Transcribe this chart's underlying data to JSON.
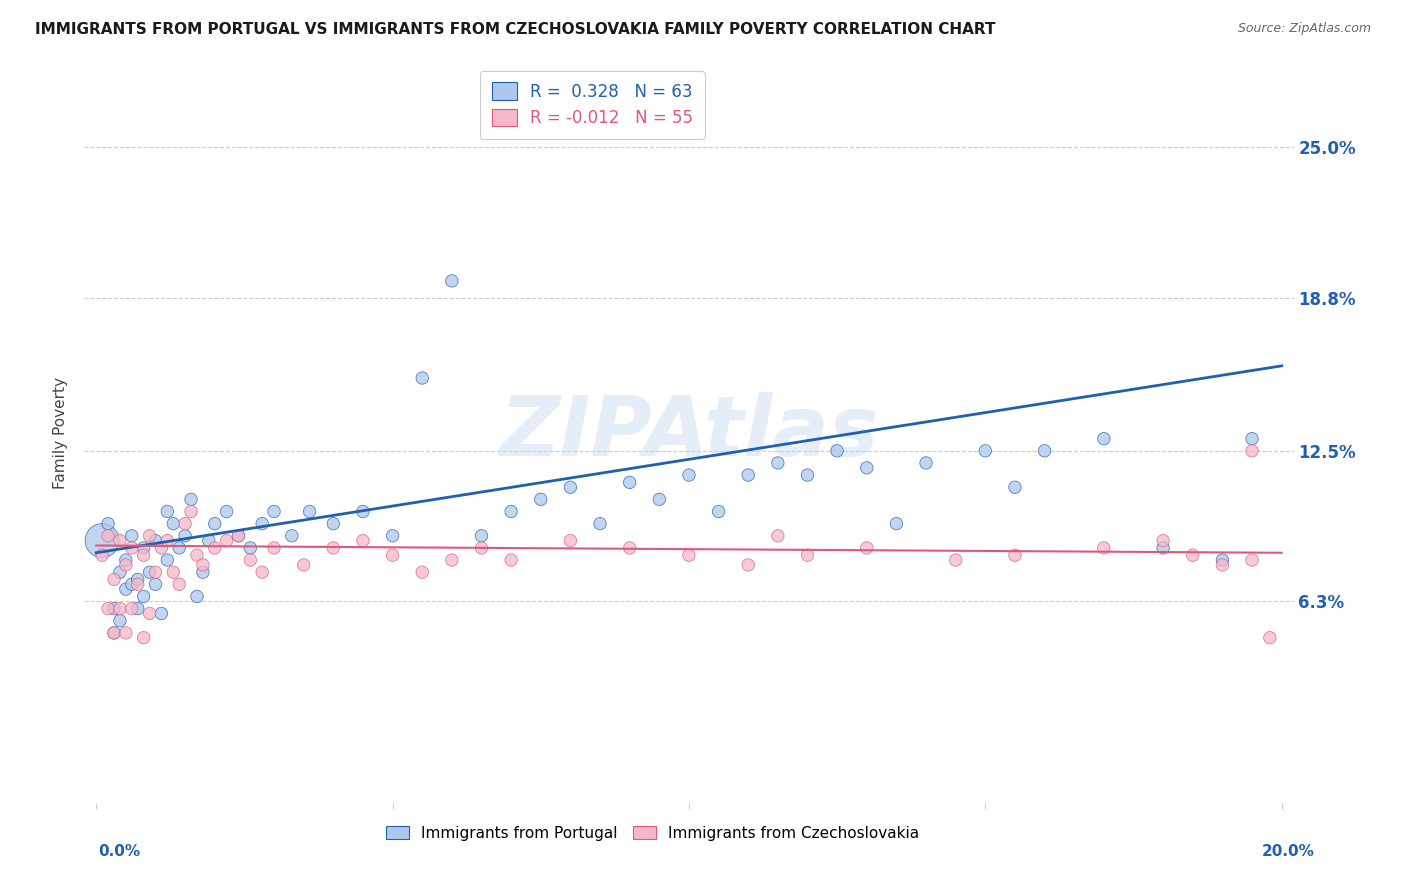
{
  "title": "IMMIGRANTS FROM PORTUGAL VS IMMIGRANTS FROM CZECHOSLOVAKIA FAMILY POVERTY CORRELATION CHART",
  "source": "Source: ZipAtlas.com",
  "ylabel": "Family Poverty",
  "legend_R1": "0.328",
  "legend_N1": "63",
  "legend_R2": "-0.012",
  "legend_N2": "55",
  "color_portugal": "#adc8ed",
  "color_czech": "#f5b8ca",
  "line_color_portugal": "#2060b0",
  "line_color_czech": "#e05878",
  "background_color": "#ffffff",
  "xlim": [
    -0.002,
    0.202
  ],
  "ylim": [
    -0.02,
    0.285
  ],
  "ytick_vals": [
    0.063,
    0.125,
    0.188,
    0.25
  ],
  "ytick_labels": [
    "6.3%",
    "12.5%",
    "18.8%",
    "25.0%"
  ],
  "portugal_x": [
    0.001,
    0.002,
    0.003,
    0.003,
    0.004,
    0.004,
    0.005,
    0.005,
    0.006,
    0.006,
    0.007,
    0.007,
    0.008,
    0.008,
    0.009,
    0.01,
    0.01,
    0.011,
    0.012,
    0.012,
    0.013,
    0.014,
    0.015,
    0.016,
    0.017,
    0.018,
    0.019,
    0.02,
    0.022,
    0.024,
    0.026,
    0.028,
    0.03,
    0.033,
    0.036,
    0.04,
    0.045,
    0.05,
    0.055,
    0.06,
    0.065,
    0.07,
    0.075,
    0.08,
    0.085,
    0.09,
    0.095,
    0.1,
    0.105,
    0.11,
    0.115,
    0.12,
    0.125,
    0.13,
    0.135,
    0.14,
    0.15,
    0.155,
    0.16,
    0.17,
    0.18,
    0.19,
    0.195
  ],
  "portugal_y": [
    0.088,
    0.095,
    0.06,
    0.05,
    0.075,
    0.055,
    0.068,
    0.08,
    0.07,
    0.09,
    0.06,
    0.072,
    0.085,
    0.065,
    0.075,
    0.088,
    0.07,
    0.058,
    0.08,
    0.1,
    0.095,
    0.085,
    0.09,
    0.105,
    0.065,
    0.075,
    0.088,
    0.095,
    0.1,
    0.09,
    0.085,
    0.095,
    0.1,
    0.09,
    0.1,
    0.095,
    0.1,
    0.09,
    0.155,
    0.195,
    0.09,
    0.1,
    0.105,
    0.11,
    0.095,
    0.112,
    0.105,
    0.115,
    0.1,
    0.115,
    0.12,
    0.115,
    0.125,
    0.118,
    0.095,
    0.12,
    0.125,
    0.11,
    0.125,
    0.13,
    0.085,
    0.08,
    0.13
  ],
  "portugal_sizes": [
    80,
    80,
    80,
    80,
    80,
    80,
    80,
    80,
    80,
    80,
    80,
    80,
    80,
    80,
    80,
    80,
    80,
    80,
    80,
    80,
    80,
    80,
    80,
    80,
    80,
    80,
    80,
    80,
    80,
    80,
    80,
    80,
    80,
    80,
    80,
    80,
    80,
    80,
    80,
    80,
    80,
    80,
    80,
    80,
    80,
    80,
    80,
    80,
    80,
    80,
    80,
    80,
    80,
    80,
    80,
    80,
    80,
    80,
    80,
    80,
    80,
    80,
    80
  ],
  "portugal_big_idx": 0,
  "portugal_big_size": 600,
  "czech_x": [
    0.001,
    0.002,
    0.002,
    0.003,
    0.003,
    0.004,
    0.004,
    0.005,
    0.005,
    0.006,
    0.006,
    0.007,
    0.008,
    0.008,
    0.009,
    0.009,
    0.01,
    0.011,
    0.012,
    0.013,
    0.014,
    0.015,
    0.016,
    0.017,
    0.018,
    0.02,
    0.022,
    0.024,
    0.026,
    0.028,
    0.03,
    0.035,
    0.04,
    0.045,
    0.05,
    0.055,
    0.06,
    0.065,
    0.07,
    0.08,
    0.09,
    0.1,
    0.11,
    0.115,
    0.12,
    0.13,
    0.145,
    0.155,
    0.17,
    0.18,
    0.185,
    0.19,
    0.195,
    0.195,
    0.198
  ],
  "czech_y": [
    0.082,
    0.09,
    0.06,
    0.072,
    0.05,
    0.088,
    0.06,
    0.078,
    0.05,
    0.085,
    0.06,
    0.07,
    0.082,
    0.048,
    0.09,
    0.058,
    0.075,
    0.085,
    0.088,
    0.075,
    0.07,
    0.095,
    0.1,
    0.082,
    0.078,
    0.085,
    0.088,
    0.09,
    0.08,
    0.075,
    0.085,
    0.078,
    0.085,
    0.088,
    0.082,
    0.075,
    0.08,
    0.085,
    0.08,
    0.088,
    0.085,
    0.082,
    0.078,
    0.09,
    0.082,
    0.085,
    0.08,
    0.082,
    0.085,
    0.088,
    0.082,
    0.078,
    0.125,
    0.08,
    0.048
  ],
  "czech_sizes": [
    80,
    80,
    80,
    80,
    80,
    80,
    80,
    80,
    80,
    80,
    80,
    80,
    80,
    80,
    80,
    80,
    80,
    80,
    80,
    80,
    80,
    80,
    80,
    80,
    80,
    80,
    80,
    80,
    80,
    80,
    80,
    80,
    80,
    80,
    80,
    80,
    80,
    80,
    80,
    80,
    80,
    80,
    80,
    80,
    80,
    80,
    80,
    80,
    80,
    80,
    80,
    80,
    80,
    80,
    80
  ],
  "port_line_x0": 0.0,
  "port_line_x1": 0.2,
  "port_line_y0": 0.083,
  "port_line_y1": 0.16,
  "czech_line_x0": 0.0,
  "czech_line_x1": 0.2,
  "czech_line_y0": 0.086,
  "czech_line_y1": 0.083
}
